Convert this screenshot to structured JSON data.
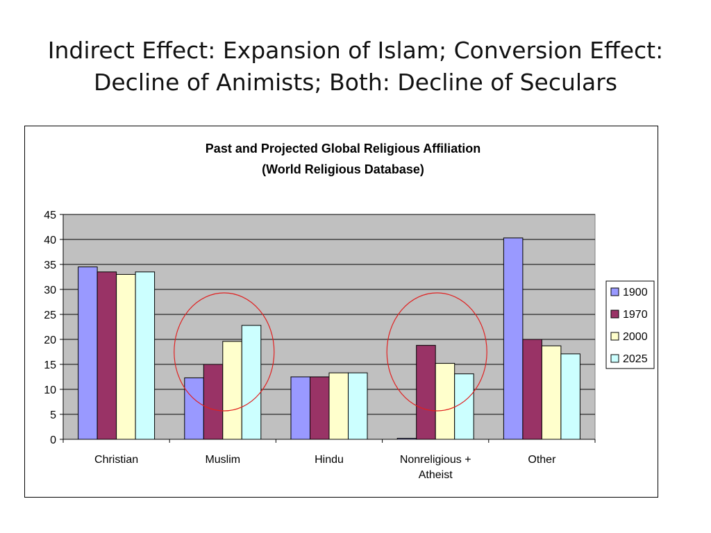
{
  "slide": {
    "title_lines": [
      "Indirect Effect: Expansion of Islam; Conversion Effect:",
      "Decline of Animists; Both: Decline of Seculars"
    ]
  },
  "chart_data": {
    "type": "bar",
    "title_lines": [
      "Past and Projected Global Religious Affiliation",
      "(World Religious Database)"
    ],
    "categories": [
      [
        "Christian"
      ],
      [
        "Muslim"
      ],
      [
        "Hindu"
      ],
      [
        "Nonreligious +",
        "Atheist"
      ],
      [
        "Other"
      ]
    ],
    "series": [
      {
        "name": "1900",
        "color": "#9999ff",
        "values": [
          34.5,
          12.3,
          12.5,
          0.2,
          40.3
        ]
      },
      {
        "name": "1970",
        "color": "#993366",
        "values": [
          33.5,
          15.0,
          12.5,
          18.8,
          20.0
        ]
      },
      {
        "name": "2000",
        "color": "#ffffcc",
        "values": [
          33.0,
          19.6,
          13.3,
          15.2,
          18.7
        ]
      },
      {
        "name": "2025",
        "color": "#ccffff",
        "values": [
          33.5,
          22.8,
          13.3,
          13.1,
          17.1
        ]
      }
    ],
    "ylim": [
      0,
      45
    ],
    "yticks": [
      0,
      5,
      10,
      15,
      20,
      25,
      30,
      35,
      40,
      45
    ],
    "grid": true,
    "plot_background": "#c0c0c0",
    "legend_position": "right",
    "annotations": [
      {
        "shape": "ellipse",
        "color": "#e02020",
        "around_category": "Muslim"
      },
      {
        "shape": "ellipse",
        "color": "#e02020",
        "around_category": "Nonreligious + Atheist"
      }
    ]
  }
}
